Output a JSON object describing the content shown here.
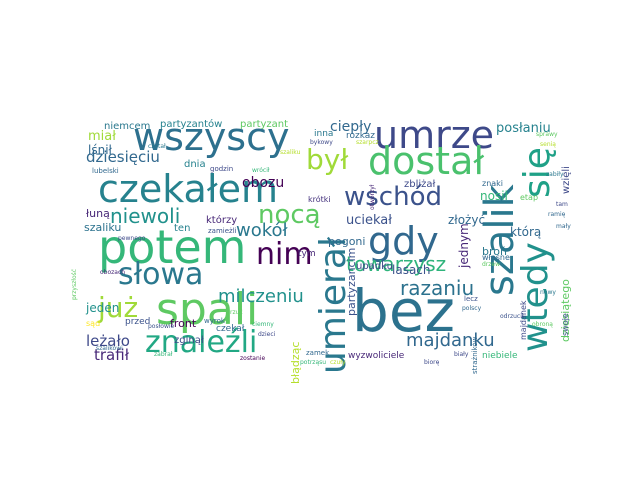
{
  "words": [
    {
      "text": "bez",
      "color": "#2c728e"
    },
    {
      "text": "potem",
      "color": "#35b779"
    },
    {
      "text": "szalik",
      "color": "#2a788e"
    },
    {
      "text": "wszyscy",
      "color": "#2d708e"
    },
    {
      "text": "umrze",
      "color": "#3e4989"
    },
    {
      "text": "czekałem",
      "color": "#26828e"
    },
    {
      "text": "dostał",
      "color": "#4ac16d"
    },
    {
      "text": "spali",
      "color": "#5ec962"
    },
    {
      "text": "umierał",
      "color": "#2a788e"
    },
    {
      "text": "wtedy",
      "color": "#21918c"
    },
    {
      "text": "się",
      "color": "#1fa187"
    },
    {
      "text": "gdy",
      "color": "#31688e"
    },
    {
      "text": "nocą",
      "color": "#5ec962"
    },
    {
      "text": "słowa",
      "color": "#2a788e"
    },
    {
      "text": "znaleźli",
      "color": "#22a884"
    },
    {
      "text": "już",
      "color": "#a0da39"
    },
    {
      "text": "nim",
      "color": "#440154"
    },
    {
      "text": "był",
      "color": "#a0da39"
    },
    {
      "text": "wschód",
      "color": "#3b528b"
    },
    {
      "text": "niewoli",
      "color": "#21918c"
    },
    {
      "text": "milczeniu",
      "color": "#21918c"
    },
    {
      "text": "towarzysz",
      "color": "#2fb47c"
    },
    {
      "text": "razaniu",
      "color": "#2c728e"
    },
    {
      "text": "majdanku",
      "color": "#31688e"
    },
    {
      "text": "wokół",
      "color": "#2a788e"
    },
    {
      "text": "posłaniu",
      "color": "#26828e"
    },
    {
      "text": "ciepły",
      "color": "#31688e"
    },
    {
      "text": "obozu",
      "color": "#440154"
    },
    {
      "text": "dziesięciu",
      "color": "#31688e"
    },
    {
      "text": "leżało",
      "color": "#3e4989"
    },
    {
      "text": "trafił",
      "color": "#482878"
    },
    {
      "text": "jeden",
      "color": "#21918c"
    },
    {
      "text": "miał",
      "color": "#a0da39"
    },
    {
      "text": "lśnił",
      "color": "#31688e"
    },
    {
      "text": "niemcem",
      "color": "#2a788e"
    },
    {
      "text": "partyzantów",
      "color": "#26828e"
    },
    {
      "text": "partyzant",
      "color": "#5ec962"
    },
    {
      "text": "uciekał",
      "color": "#3b528b"
    },
    {
      "text": "zbliżał",
      "color": "#3e4989"
    },
    {
      "text": "złożyć",
      "color": "#31688e"
    },
    {
      "text": "nosił",
      "color": "#35b779"
    },
    {
      "text": "jednym",
      "color": "#482878"
    },
    {
      "text": "którą",
      "color": "#31688e"
    },
    {
      "text": "lasach",
      "color": "#3b528b"
    },
    {
      "text": "pogoni",
      "color": "#31688e"
    },
    {
      "text": "wzięli",
      "color": "#3e4989"
    },
    {
      "text": "dziesiątego",
      "color": "#5ec962"
    },
    {
      "text": "broń",
      "color": "#2a788e"
    },
    {
      "text": "łuną",
      "color": "#482878"
    },
    {
      "text": "szaliku",
      "color": "#2c728e"
    },
    {
      "text": "front",
      "color": "#440154"
    },
    {
      "text": "błądząc",
      "color": "#b5de2b"
    },
    {
      "text": "którzy",
      "color": "#482878"
    },
    {
      "text": "dnia",
      "color": "#26828e"
    },
    {
      "text": "ten",
      "color": "#26828e"
    },
    {
      "text": "przed",
      "color": "#3b528b"
    },
    {
      "text": "zginął",
      "color": "#3e4989"
    },
    {
      "text": "czekał",
      "color": "#31688e"
    },
    {
      "text": "tym",
      "color": "#482878"
    },
    {
      "text": "partyzancim",
      "color": "#3b528b"
    },
    {
      "text": "upadku",
      "color": "#3e4989"
    },
    {
      "text": "rozkaz",
      "color": "#31688e"
    },
    {
      "text": "inna",
      "color": "#2a788e"
    },
    {
      "text": "krótki",
      "color": "#46337e"
    },
    {
      "text": "znaki",
      "color": "#31688e"
    },
    {
      "text": "etap",
      "color": "#5ec962"
    },
    {
      "text": "majdanek",
      "color": "#3e4989"
    },
    {
      "text": "własne",
      "color": "#31688e"
    },
    {
      "text": "swoje",
      "color": "#3b528b"
    },
    {
      "text": "sąd",
      "color": "#fde725"
    },
    {
      "text": "zamek",
      "color": "#31688e"
    },
    {
      "text": "wyzwoliciele",
      "color": "#482878"
    },
    {
      "text": "niebiele",
      "color": "#35b779"
    },
    {
      "text": "godzin",
      "color": "#3e4989"
    },
    {
      "text": "lubelski",
      "color": "#31688e"
    },
    {
      "text": "zamieżli",
      "color": "#3b528b"
    },
    {
      "text": "wyrok",
      "color": "#31688e"
    },
    {
      "text": "potrząsu",
      "color": "#35b779"
    },
    {
      "text": "biały",
      "color": "#3e4989"
    },
    {
      "text": "lecz",
      "color": "#3b528b"
    },
    {
      "text": "strażników",
      "color": "#31688e"
    },
    {
      "text": "nowy",
      "color": "#2a788e"
    },
    {
      "text": "tam",
      "color": "#3e4989"
    },
    {
      "text": "zostanie",
      "color": "#440154"
    },
    {
      "text": "ciemny",
      "color": "#35b779"
    },
    {
      "text": "otworzył",
      "color": "#482878"
    },
    {
      "text": "senią",
      "color": "#b5de2b"
    },
    {
      "text": "czytał",
      "color": "#2a788e"
    },
    {
      "text": "bykowy",
      "color": "#3e4989"
    },
    {
      "text": "szarpcz",
      "color": "#b5de2b"
    },
    {
      "text": "drzew",
      "color": "#5ec962"
    },
    {
      "text": "posłowie",
      "color": "#3b528b"
    },
    {
      "text": "szalikowi",
      "color": "#31688e"
    },
    {
      "text": "przyszłość",
      "color": "#5ec962"
    },
    {
      "text": "wrócił",
      "color": "#35b779"
    },
    {
      "text": "zabiły",
      "color": "#2a788e"
    },
    {
      "text": "czuły",
      "color": "#b5de2b"
    },
    {
      "text": "rzuć",
      "color": "#5ec962"
    },
    {
      "text": "dzieci",
      "color": "#3e4989"
    },
    {
      "text": "ramię",
      "color": "#31688e"
    },
    {
      "text": "obroną",
      "color": "#5ec962"
    },
    {
      "text": "sprawy",
      "color": "#5ec962"
    },
    {
      "text": "polscy",
      "color": "#31688e"
    },
    {
      "text": "pewnego",
      "color": "#3e4989"
    },
    {
      "text": "obozach",
      "color": "#482878"
    },
    {
      "text": "mały",
      "color": "#31688e"
    },
    {
      "text": "szaliku",
      "color": "#b5de2b"
    },
    {
      "text": "odrzucił",
      "color": "#3b528b"
    },
    {
      "text": "zabrał",
      "color": "#35b779"
    },
    {
      "text": "biorę",
      "color": "#3e4989"
    }
  ]
}
